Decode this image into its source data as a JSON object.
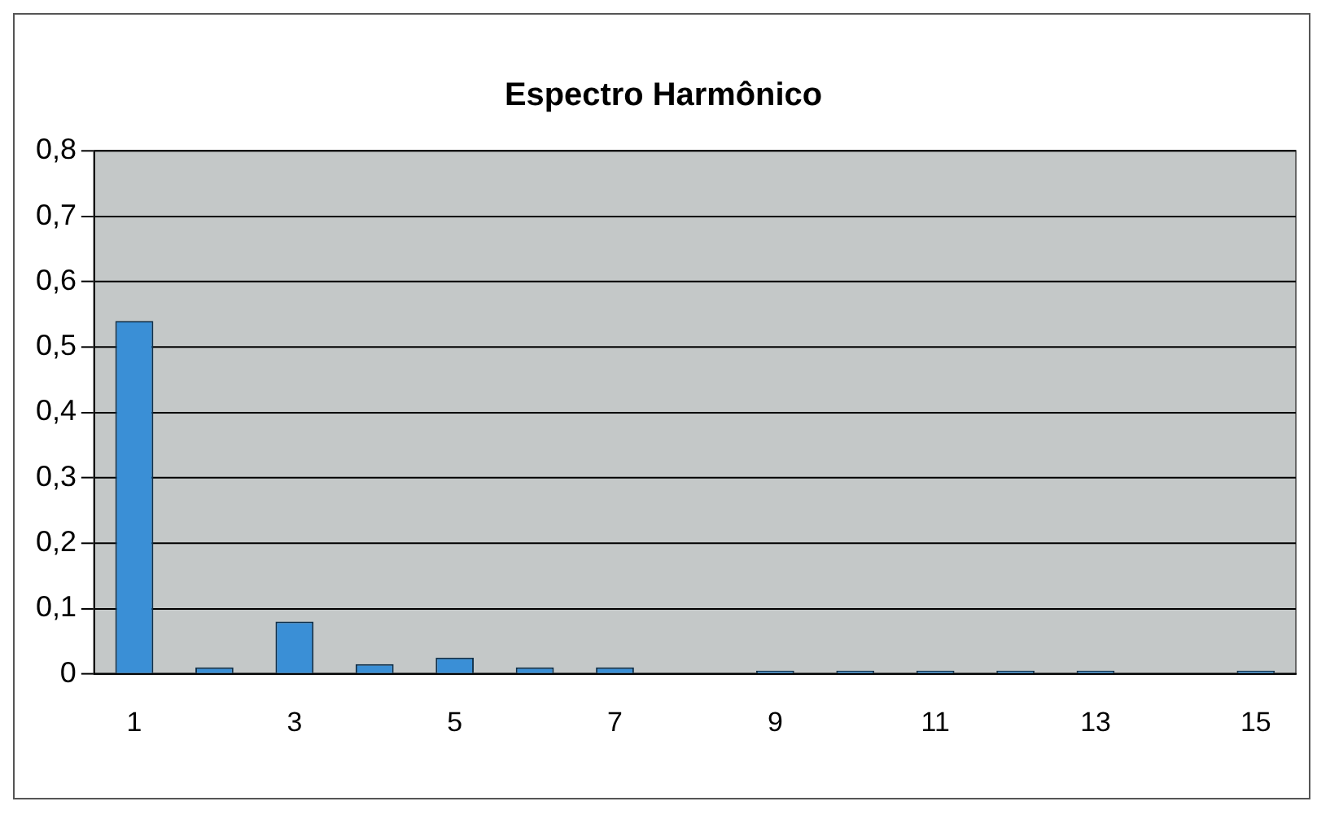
{
  "chart_data": {
    "type": "bar",
    "title": "Espectro Harmônico",
    "categories": [
      "1",
      null,
      "3",
      null,
      "5",
      null,
      "7",
      null,
      "9",
      null,
      "11",
      null,
      "13",
      null,
      "15"
    ],
    "values": [
      0.54,
      0.01,
      0.08,
      0.015,
      0.025,
      0.01,
      0.01,
      0,
      0.005,
      0.005,
      0.005,
      0.005,
      0.005,
      0,
      0.005
    ],
    "color": "#3a8fd6",
    "ylim": [
      0,
      0.8
    ],
    "yticks": [
      0,
      {
        "value": 0.1,
        "label": "0,1"
      },
      {
        "value": 0.2,
        "label": "0,2"
      },
      {
        "value": 0.3,
        "label": "0,3"
      },
      {
        "value": 0.4,
        "label": "0,4"
      },
      {
        "value": 0.5,
        "label": "0,5"
      },
      {
        "value": 0.6,
        "label": "0,6"
      },
      {
        "value": 0.7,
        "label": "0,7"
      },
      {
        "value": 0.8,
        "label": "0,8"
      }
    ],
    "grid": "y",
    "legend": false
  }
}
